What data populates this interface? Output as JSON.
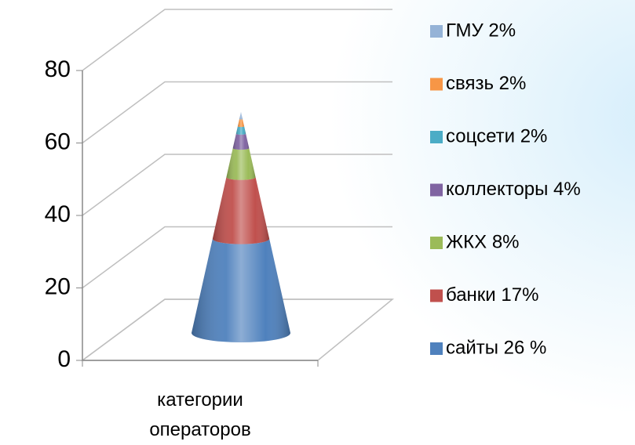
{
  "chart_data": {
    "type": "cone",
    "categories": [
      "категории операторов"
    ],
    "series": [
      {
        "name": "сайты 26 %",
        "color": "#4f81bd",
        "values": [
          26
        ]
      },
      {
        "name": "банки 17%",
        "color": "#c0504d",
        "values": [
          17
        ]
      },
      {
        "name": "ЖКХ 8%",
        "color": "#9bbb59",
        "values": [
          8
        ]
      },
      {
        "name": "коллекторы 4%",
        "color": "#8064a2",
        "values": [
          4
        ]
      },
      {
        "name": "соцсети 2%",
        "color": "#4bacc6",
        "values": [
          2
        ]
      },
      {
        "name": "связь 2%",
        "color": "#f79646",
        "values": [
          2
        ]
      },
      {
        "name": "ГМУ 2%",
        "color": "#95b3d7",
        "values": [
          2
        ]
      }
    ],
    "ylim": [
      0,
      80
    ],
    "yticks": [
      0,
      20,
      40,
      60,
      80
    ],
    "grid": true,
    "legend": "right"
  }
}
